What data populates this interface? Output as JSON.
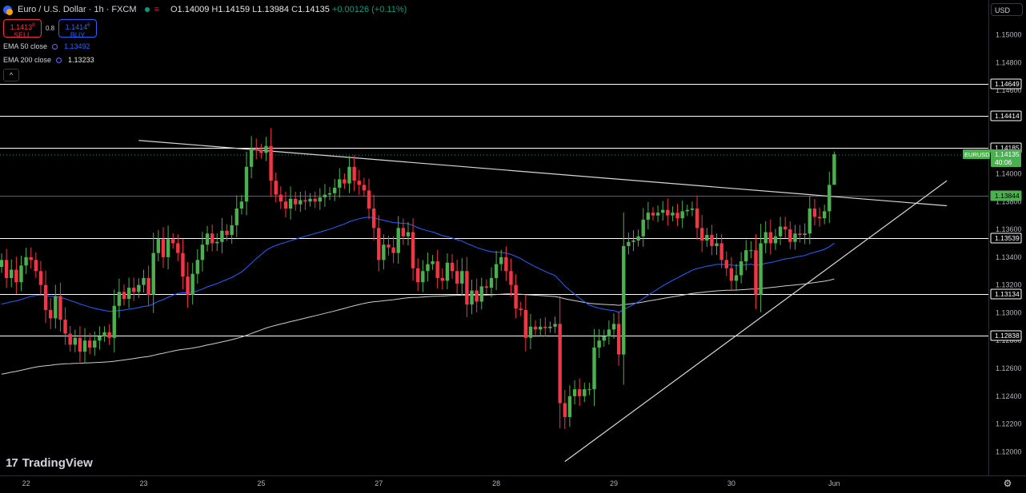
{
  "header": {
    "title": "Euro / U.S. Dollar · 1h · FXCM",
    "market_status_icon": "green-dot-icon",
    "o_label": "O",
    "o_value": "1.14009",
    "h_label": "H",
    "h_value": "1.14159",
    "l_label": "L",
    "l_value": "1.13984",
    "c_label": "C",
    "c_value": "1.14135",
    "change": "+0.00126 (+0.11%)"
  },
  "trade": {
    "sell_price": "1.1413",
    "sell_sup": "8",
    "sell_label": "SELL",
    "spread": "0.8",
    "buy_price": "1.1414",
    "buy_sup": "6",
    "buy_label": "BUY"
  },
  "indicators": [
    {
      "label": "EMA 50 close",
      "value": "1.13492",
      "color": "#2962ff"
    },
    {
      "label": "EMA 200 close",
      "value": "1.13233",
      "color": "#e8e8e8"
    }
  ],
  "currency": "USD",
  "brand": "TradingView",
  "colors": {
    "up": "#4caf50",
    "down": "#f23645",
    "ema50": "#2962ff",
    "ema200": "#cfcfcf",
    "level": "#ffffff",
    "mid": "#089981"
  },
  "chart_data": {
    "type": "candlestick",
    "symbol": "EURUSD",
    "timeframe": "1h",
    "y_ticks": [
      1.12,
      1.122,
      1.124,
      1.126,
      1.128,
      1.13,
      1.132,
      1.134,
      1.136,
      1.138,
      1.14,
      1.142,
      1.144,
      1.146,
      1.148,
      1.15
    ],
    "y_tick_labels": [
      "1.12000",
      "1.12200",
      "1.12400",
      "1.12600",
      "1.12800",
      "1.13000",
      "1.13200",
      "1.13400",
      "1.13600",
      "1.13800",
      "1.14000",
      "1.14200",
      "1.14400",
      "1.14600",
      "1.14800",
      "1.15000"
    ],
    "ylim": [
      1.1183,
      1.1525
    ],
    "x_tick_labels": [
      {
        "label": "22",
        "bar": 5
      },
      {
        "label": "23",
        "bar": 29
      },
      {
        "label": "25",
        "bar": 53
      },
      {
        "label": "27",
        "bar": 77
      },
      {
        "label": "28",
        "bar": 101
      },
      {
        "label": "29",
        "bar": 125
      },
      {
        "label": "30",
        "bar": 149
      },
      {
        "label": "Jun",
        "bar": 170
      }
    ],
    "horizontal_levels": [
      {
        "value": 1.14649,
        "label": "1.14649"
      },
      {
        "value": 1.14414,
        "label": "1.14414"
      },
      {
        "value": 1.14185,
        "label": "1.14185"
      },
      {
        "value": 1.13539,
        "label": "1.13539"
      },
      {
        "value": 1.13134,
        "label": "1.13134"
      },
      {
        "value": 1.12838,
        "label": "1.12838"
      }
    ],
    "green_level": {
      "value": 1.13844,
      "label": "1.13844"
    },
    "current_price": {
      "symbol_label": "EURUSD",
      "value": 1.14135,
      "label": "1.14135",
      "countdown": "40:06"
    },
    "trendlines": [
      {
        "name": "descending-resistance",
        "points": [
          [
            28,
            1.1424
          ],
          [
            193,
            1.1377
          ]
        ]
      },
      {
        "name": "ascending-support",
        "points": [
          [
            115,
            1.1193
          ],
          [
            193,
            1.1395
          ]
        ]
      }
    ],
    "closes": [
      1.1338,
      1.1325,
      1.1331,
      1.1322,
      1.1334,
      1.134,
      1.1338,
      1.133,
      1.132,
      1.1302,
      1.1296,
      1.1312,
      1.1295,
      1.1285,
      1.1277,
      1.1282,
      1.1272,
      1.128,
      1.1275,
      1.128,
      1.1283,
      1.1286,
      1.1282,
      1.1305,
      1.1315,
      1.131,
      1.1318,
      1.1315,
      1.132,
      1.1325,
      1.1313,
      1.1343,
      1.1353,
      1.134,
      1.1353,
      1.135,
      1.1343,
      1.1326,
      1.1313,
      1.1328,
      1.1338,
      1.1349,
      1.1357,
      1.135,
      1.1351,
      1.1359,
      1.1356,
      1.1363,
      1.1375,
      1.138,
      1.1405,
      1.1418,
      1.1417,
      1.1415,
      1.142,
      1.1395,
      1.1385,
      1.138,
      1.1375,
      1.1382,
      1.1378,
      1.1381,
      1.138,
      1.1382,
      1.138,
      1.1383,
      1.1385,
      1.1386,
      1.139,
      1.1396,
      1.1393,
      1.1405,
      1.1395,
      1.1392,
      1.1388,
      1.1375,
      1.1361,
      1.1338,
      1.1349,
      1.1347,
      1.1343,
      1.1361,
      1.1355,
      1.1358,
      1.1332,
      1.1322,
      1.133,
      1.1335,
      1.1337,
      1.1325,
      1.1323,
      1.1336,
      1.133,
      1.1321,
      1.133,
      1.1306,
      1.1316,
      1.1308,
      1.1319,
      1.1318,
      1.1325,
      1.1335,
      1.134,
      1.133,
      1.132,
      1.1303,
      1.1302,
      1.1282,
      1.129,
      1.1288,
      1.129,
      1.1289,
      1.129,
      1.1292,
      1.1235,
      1.1225,
      1.124,
      1.1245,
      1.124,
      1.1245,
      1.1245,
      1.1275,
      1.128,
      1.1283,
      1.1288,
      1.1292,
      1.127,
      1.1348,
      1.1351,
      1.1352,
      1.1355,
      1.1367,
      1.1372,
      1.137,
      1.1372,
      1.1374,
      1.137,
      1.1372,
      1.1368,
      1.1373,
      1.1374,
      1.1375,
      1.1361,
      1.1352,
      1.1356,
      1.1348,
      1.135,
      1.1338,
      1.1332,
      1.1323,
      1.1327,
      1.1337,
      1.1345,
      1.1345,
      1.1313,
      1.135,
      1.1358,
      1.135,
      1.1355,
      1.1362,
      1.136,
      1.1351,
      1.1357,
      1.1356,
      1.1357,
      1.1375,
      1.1369,
      1.1368,
      1.1373,
      1.1392,
      1.1414
    ]
  }
}
